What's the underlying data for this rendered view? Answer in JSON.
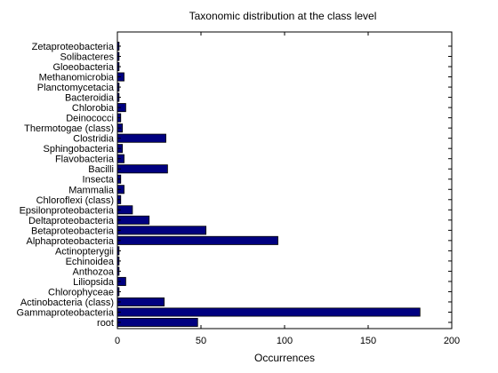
{
  "chart_data": {
    "type": "bar",
    "orientation": "horizontal",
    "title": "Taxonomic distribution at the class level",
    "xlabel": "Occurrences",
    "ylabel": "",
    "xlim": [
      0,
      200
    ],
    "xticks": [
      0,
      50,
      100,
      150,
      200
    ],
    "grid": false,
    "legend": "none",
    "bar_color": "#000080",
    "categories": [
      "root",
      "Gammaproteobacteria",
      "Actinobacteria (class)",
      "Chlorophyceae",
      "Liliopsida",
      "Anthozoa",
      "Echinoidea",
      "Actinopterygii",
      "Alphaproteobacteria",
      "Betaproteobacteria",
      "Deltaproteobacteria",
      "Epsilonproteobacteria",
      "Chloroflexi (class)",
      "Mammalia",
      "Insecta",
      "Bacilli",
      "Flavobacteria",
      "Sphingobacteria",
      "Clostridia",
      "Thermotogae (class)",
      "Deinococci",
      "Chlorobia",
      "Bacteroidia",
      "Planctomycetacia",
      "Methanomicrobia",
      "Gloeobacteria",
      "Solibacteres",
      "Zetaproteobacteria"
    ],
    "values": [
      48,
      181,
      28,
      1,
      5,
      1,
      1,
      1,
      96,
      53,
      19,
      9,
      2,
      4,
      2,
      30,
      4,
      3,
      29,
      3,
      2,
      5,
      1,
      1,
      4,
      1,
      1,
      1
    ]
  }
}
